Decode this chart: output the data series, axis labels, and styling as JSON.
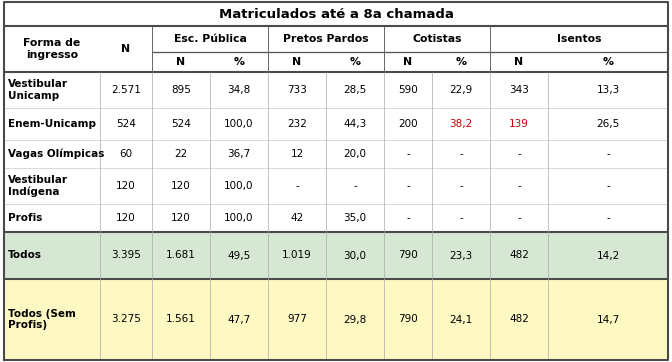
{
  "title": "Matriculados até a 8a chamada",
  "rows": [
    {
      "label": "Vestibular\nUnicamp",
      "data": [
        "2.571",
        "895",
        "34,8",
        "733",
        "28,5",
        "590",
        "22,9",
        "343",
        "13,3"
      ],
      "bg": "#ffffff",
      "label_bold": true
    },
    {
      "label": "Enem-Unicamp",
      "data": [
        "524",
        "524",
        "100,0",
        "232",
        "44,3",
        "200",
        "38,2",
        "139",
        "26,5"
      ],
      "bg": "#ffffff",
      "label_bold": true,
      "highlight_cols": [
        7,
        8
      ]
    },
    {
      "label": "Vagas Olímpicas",
      "data": [
        "60",
        "22",
        "36,7",
        "12",
        "20,0",
        "-",
        "-",
        "-",
        "-"
      ],
      "bg": "#ffffff",
      "label_bold": true
    },
    {
      "label": "Vestibular\nIndígena",
      "data": [
        "120",
        "120",
        "100,0",
        "-",
        "-",
        "-",
        "-",
        "-",
        "-"
      ],
      "bg": "#ffffff",
      "label_bold": true
    },
    {
      "label": "Profis",
      "data": [
        "120",
        "120",
        "100,0",
        "42",
        "35,0",
        "-",
        "-",
        "-",
        "-"
      ],
      "bg": "#ffffff",
      "label_bold": true
    }
  ],
  "summary_rows": [
    {
      "label": "Todos",
      "data": [
        "3.395",
        "1.681",
        "49,5",
        "1.019",
        "30,0",
        "790",
        "23,3",
        "482",
        "14,2"
      ],
      "bg": "#d6e8d4"
    },
    {
      "label": "Todos (Sem\nProfis)",
      "data": [
        "3.275",
        "1.561",
        "47,7",
        "977",
        "29,8",
        "790",
        "24,1",
        "482",
        "14,7"
      ],
      "bg": "#fef9c3"
    }
  ],
  "highlight_color": "#cc0000",
  "border_dark": "#4a4a4a",
  "border_light": "#9a9a9a"
}
